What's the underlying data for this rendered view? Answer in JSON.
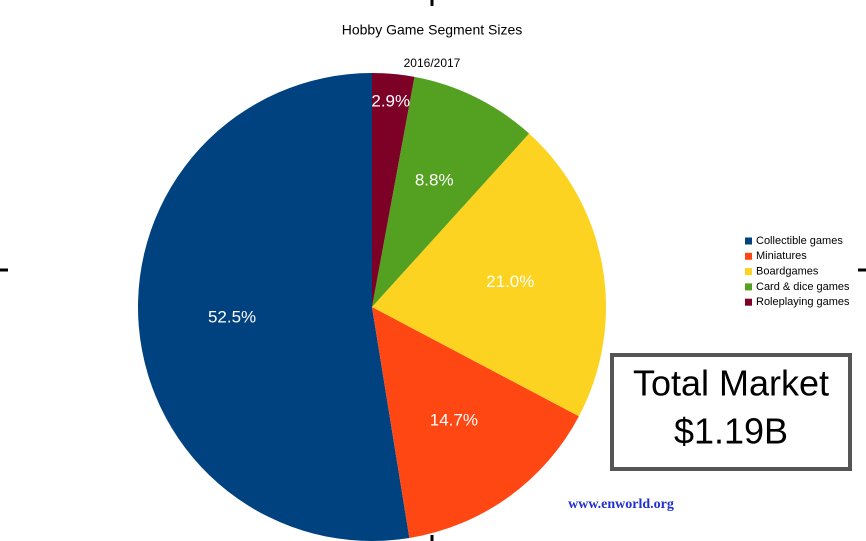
{
  "chart_data": {
    "type": "pie",
    "title": "Hobby Game Segment Sizes",
    "subtitle": "2016/2017",
    "categories": [
      "Collectible games",
      "Miniatures",
      "Boardgames",
      "Card & dice games",
      "Roleplaying games"
    ],
    "values": [
      52.5,
      14.7,
      21.0,
      8.8,
      2.9
    ],
    "value_labels": [
      "52.5%",
      "14.7%",
      "21.0%",
      "8.8%",
      "2.9%"
    ],
    "colors": [
      "#00427f",
      "#ff4713",
      "#fdd321",
      "#54a020",
      "#7d0027"
    ],
    "direction": "counterclockwise",
    "legend": "right",
    "annotations": [
      "Total Market",
      "$1.19B",
      "www.enworld.org"
    ]
  }
}
